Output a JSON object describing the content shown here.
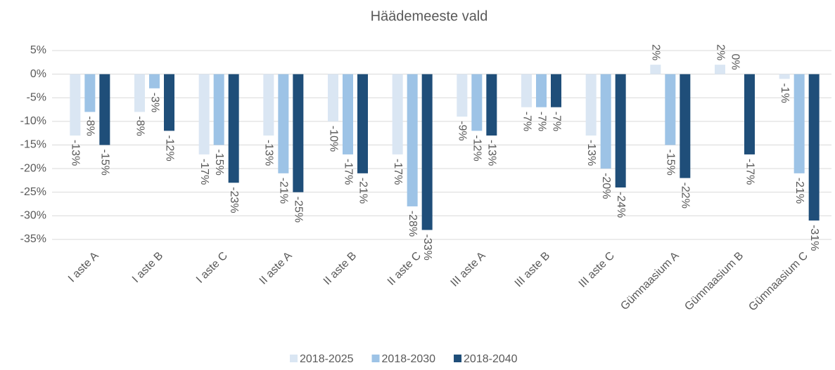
{
  "chart_data": {
    "type": "bar",
    "title": "Häädemeeste vald",
    "categories": [
      "I aste A",
      "I aste B",
      "I aste C",
      "II aste A",
      "II aste B",
      "II aste C",
      "III aste A",
      "III aste B",
      "III aste C",
      "Gümnaasium A",
      "Gümnaasium B",
      "Gümnaasium C"
    ],
    "series": [
      {
        "name": "2018-2025",
        "color": "#dae6f3",
        "values": [
          -13,
          -8,
          -17,
          -13,
          -10,
          -17,
          -9,
          -7,
          -13,
          2,
          2,
          -1
        ],
        "value_labels": [
          "-13%",
          "-8%",
          "-17%",
          "-13%",
          "-10%",
          "-17%",
          "-9%",
          "-7%",
          "-13%",
          "2%",
          "2%",
          "-1%"
        ]
      },
      {
        "name": "2018-2030",
        "color": "#9dc3e6",
        "values": [
          -8,
          -3,
          -15,
          -21,
          -17,
          -28,
          -12,
          -7,
          -20,
          -15,
          0,
          -21
        ],
        "value_labels": [
          "-8%",
          "-3%",
          "-15%",
          "-21%",
          "-17%",
          "-28%",
          "-12%",
          "-7%",
          "-20%",
          "-15%",
          "0%",
          "-21%"
        ]
      },
      {
        "name": "2018-2040",
        "color": "#1f4e79",
        "values": [
          -15,
          -12,
          -23,
          -25,
          -21,
          -33,
          -13,
          -7,
          -24,
          -22,
          -17,
          -31
        ],
        "value_labels": [
          "-15%",
          "-12%",
          "-23%",
          "-25%",
          "-21%",
          "-33%",
          "-13%",
          "-7%",
          "-24%",
          "-22%",
          "-17%",
          "-31%"
        ]
      }
    ],
    "ylim": [
      -35,
      5
    ],
    "yticks": [
      {
        "value": 5,
        "label": "5%"
      },
      {
        "value": 0,
        "label": "0%"
      },
      {
        "value": -5,
        "label": "-5%"
      },
      {
        "value": -10,
        "label": "-10%"
      },
      {
        "value": -15,
        "label": "-15%"
      },
      {
        "value": -20,
        "label": "-20%"
      },
      {
        "value": -25,
        "label": "-25%"
      },
      {
        "value": -30,
        "label": "-30%"
      },
      {
        "value": -35,
        "label": "-35%"
      }
    ],
    "grid": true
  }
}
